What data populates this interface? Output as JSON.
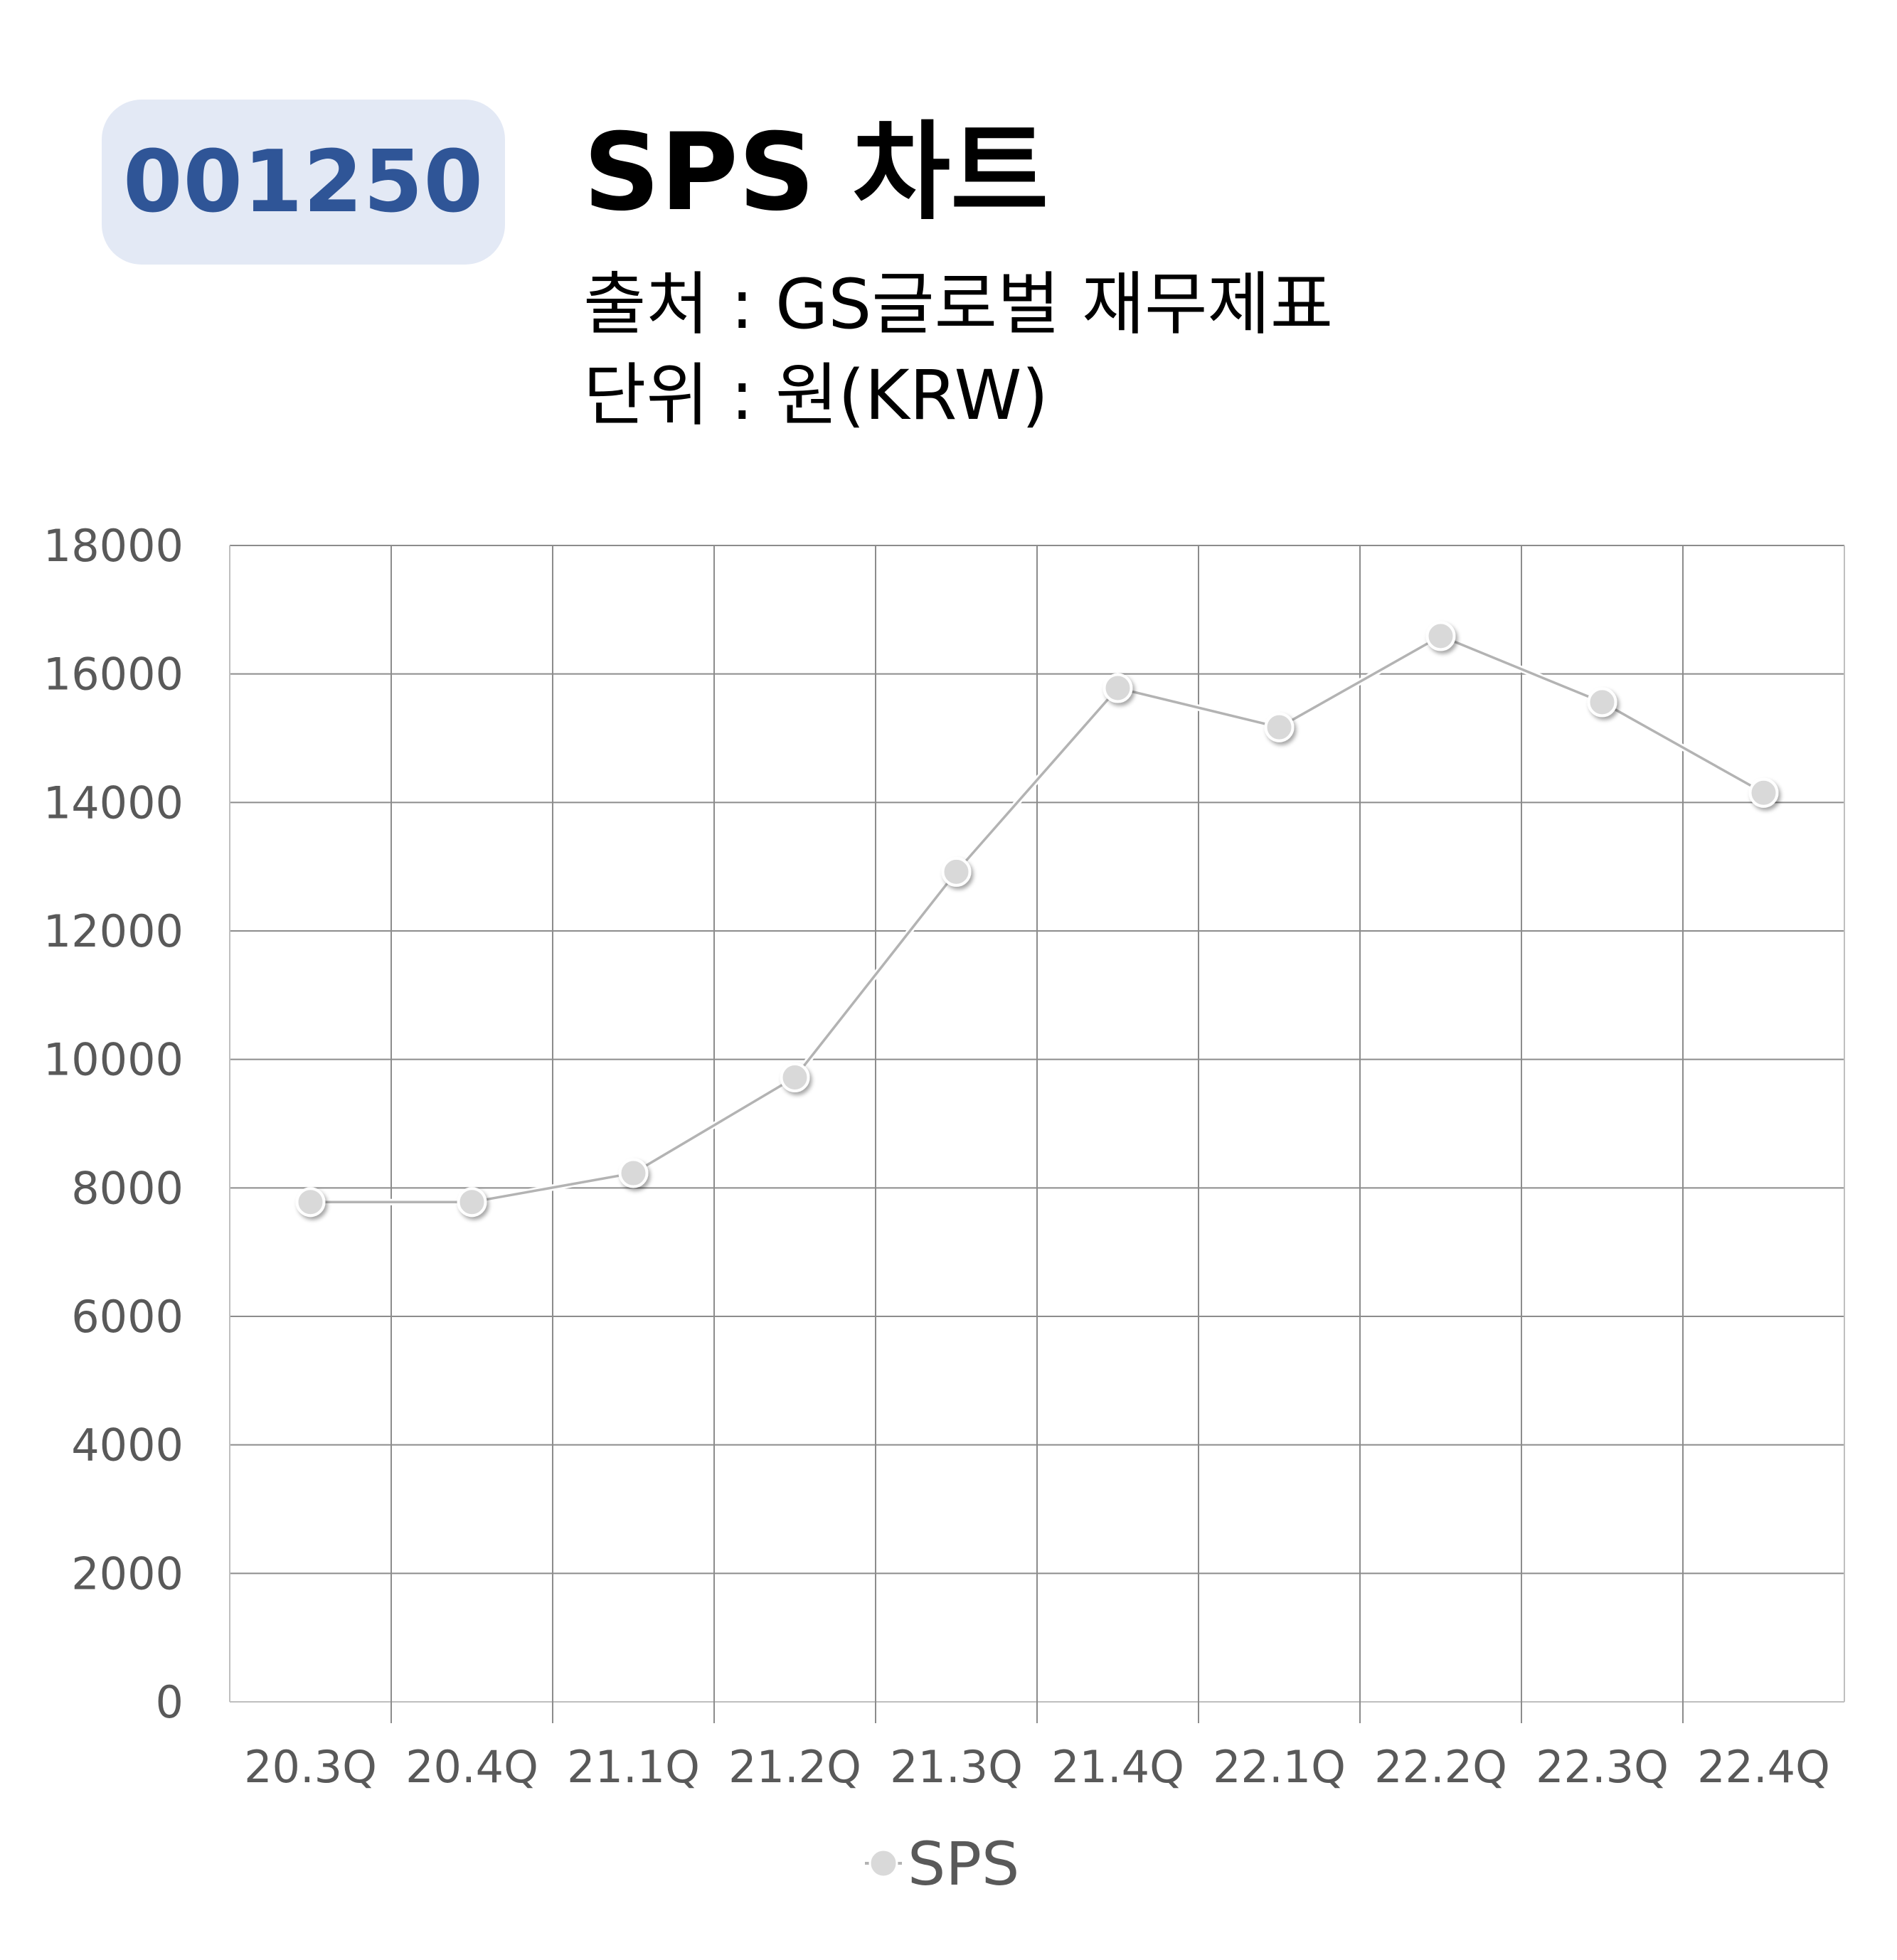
{
  "header": {
    "code": "001250",
    "title": "SPS 차트",
    "source": "출처 : GS글로벌 재무제표",
    "unit": "단위 : 원(KRW)"
  },
  "colors": {
    "badge_bg": "#e3e9f5",
    "badge_text": "#2f5597",
    "series_line": "#b3b3b3",
    "series_marker": "#d9d9d9",
    "grid": "#8c8c8c",
    "tick_text": "#595959"
  },
  "chart_data": {
    "type": "line",
    "title": "SPS 차트",
    "categories": [
      "20.3Q",
      "20.4Q",
      "21.1Q",
      "21.2Q",
      "21.3Q",
      "21.4Q",
      "22.1Q",
      "22.2Q",
      "22.3Q",
      "22.4Q"
    ],
    "series": [
      {
        "name": "SPS",
        "values": [
          7780,
          7780,
          8230,
          9720,
          12920,
          15780,
          15170,
          16590,
          15560,
          14150
        ]
      }
    ],
    "yticks": [
      "0",
      "2000",
      "4000",
      "6000",
      "8000",
      "10000",
      "12000",
      "14000",
      "16000",
      "18000"
    ],
    "ylim": [
      0,
      18000
    ],
    "xlabel": "",
    "ylabel": "",
    "grid": true,
    "legend": "bottom"
  }
}
